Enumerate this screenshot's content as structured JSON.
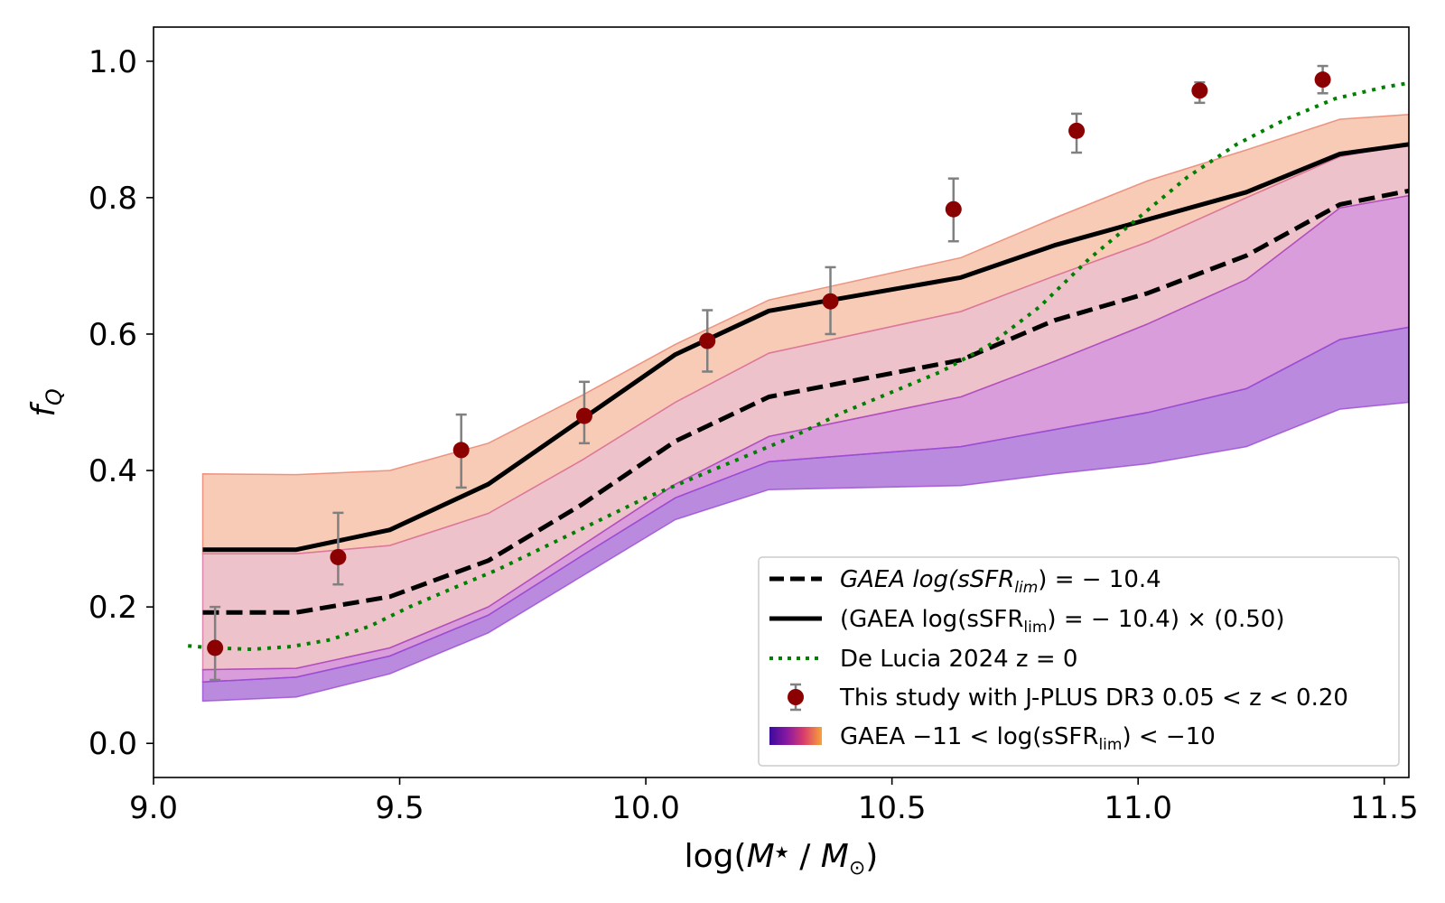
{
  "chart_data": {
    "type": "line",
    "title": "",
    "xlabel_parts": [
      "log(",
      "M",
      "★",
      " / ",
      "M",
      "⊙",
      ")"
    ],
    "ylabel_parts": [
      "f",
      "Q"
    ],
    "xlim": [
      9.0,
      11.55
    ],
    "ylim": [
      -0.05,
      1.05
    ],
    "xticks": [
      9.0,
      9.5,
      10.0,
      10.5,
      11.0,
      11.5
    ],
    "xtick_labels": [
      "9.0",
      "9.5",
      "10.0",
      "10.5",
      "11.0",
      "11.5"
    ],
    "yticks": [
      0.0,
      0.2,
      0.4,
      0.6,
      0.8,
      1.0
    ],
    "ytick_labels": [
      "0.0",
      "0.2",
      "0.4",
      "0.6",
      "0.8",
      "1.0"
    ],
    "colors": {
      "points": "#8b0000",
      "errorbars": "#808080",
      "gaea_dashed": "#000000",
      "gaea_solid": "#000000",
      "delucia": "#008000",
      "band_outer": "#f0a07a",
      "band_mid": "#e39aa8",
      "band_inner_upper": "#c368c6",
      "band_inner_lower": "#8a3cc8"
    },
    "bands": [
      {
        "name": "band-outer",
        "x": [
          9.1,
          9.29,
          9.48,
          9.68,
          9.87,
          10.06,
          10.25,
          10.64,
          10.83,
          11.02,
          11.22,
          11.41,
          11.55
        ],
        "lower": [
          0.278,
          0.278,
          0.29,
          0.337,
          0.415,
          0.5,
          0.572,
          0.633,
          0.685,
          0.735,
          0.8,
          0.86,
          0.88
        ],
        "upper": [
          0.395,
          0.394,
          0.4,
          0.44,
          0.51,
          0.585,
          0.65,
          0.712,
          0.77,
          0.825,
          0.87,
          0.915,
          0.922
        ]
      },
      {
        "name": "band-mid",
        "x": [
          9.1,
          9.29,
          9.48,
          9.68,
          9.87,
          10.06,
          10.25,
          10.64,
          10.83,
          11.02,
          11.22,
          11.41,
          11.55
        ],
        "lower": [
          0.108,
          0.11,
          0.14,
          0.2,
          0.29,
          0.38,
          0.45,
          0.508,
          0.56,
          0.615,
          0.68,
          0.785,
          0.803
        ],
        "upper": [
          0.278,
          0.278,
          0.29,
          0.337,
          0.415,
          0.5,
          0.572,
          0.633,
          0.685,
          0.735,
          0.8,
          0.86,
          0.88
        ]
      },
      {
        "name": "band-inner-upper",
        "x": [
          9.1,
          9.29,
          9.48,
          9.68,
          9.87,
          10.06,
          10.25,
          10.64,
          10.83,
          11.02,
          11.22,
          11.41,
          11.55
        ],
        "lower": [
          0.09,
          0.097,
          0.128,
          0.188,
          0.275,
          0.36,
          0.413,
          0.435,
          0.46,
          0.485,
          0.52,
          0.592,
          0.61
        ],
        "upper": [
          0.108,
          0.11,
          0.14,
          0.2,
          0.29,
          0.38,
          0.45,
          0.508,
          0.56,
          0.615,
          0.68,
          0.785,
          0.803
        ]
      },
      {
        "name": "band-inner-lower",
        "x": [
          9.1,
          9.29,
          9.48,
          9.68,
          9.87,
          10.06,
          10.25,
          10.64,
          10.83,
          11.02,
          11.22,
          11.41,
          11.55
        ],
        "lower": [
          0.062,
          0.068,
          0.102,
          0.162,
          0.245,
          0.328,
          0.372,
          0.378,
          0.395,
          0.41,
          0.435,
          0.49,
          0.5
        ],
        "upper": [
          0.09,
          0.097,
          0.128,
          0.188,
          0.275,
          0.36,
          0.413,
          0.435,
          0.46,
          0.485,
          0.52,
          0.592,
          0.61
        ]
      }
    ],
    "series": [
      {
        "name": "GAEA dashed",
        "x": [
          9.1,
          9.29,
          9.48,
          9.68,
          9.87,
          10.06,
          10.25,
          10.64,
          10.83,
          11.02,
          11.22,
          11.41,
          11.55
        ],
        "y": [
          0.192,
          0.192,
          0.215,
          0.268,
          0.35,
          0.443,
          0.508,
          0.562,
          0.62,
          0.66,
          0.715,
          0.79,
          0.81
        ]
      },
      {
        "name": "GAEA scaled solid",
        "x": [
          9.1,
          9.29,
          9.48,
          9.68,
          9.87,
          10.06,
          10.25,
          10.64,
          10.83,
          11.02,
          11.22,
          11.41,
          11.55
        ],
        "y": [
          0.284,
          0.284,
          0.313,
          0.38,
          0.475,
          0.57,
          0.634,
          0.683,
          0.73,
          0.768,
          0.808,
          0.864,
          0.878
        ]
      },
      {
        "name": "De Lucia 2024",
        "x": [
          9.07,
          9.12,
          9.2,
          9.28,
          9.36,
          9.44,
          9.52,
          9.6,
          9.7,
          9.8,
          9.9,
          10.0,
          10.1,
          10.2,
          10.3,
          10.4,
          10.5,
          10.6,
          10.7,
          10.8,
          10.9,
          11.0,
          11.1,
          11.2,
          11.3,
          11.4,
          11.5,
          11.55
        ],
        "y": [
          0.143,
          0.14,
          0.138,
          0.142,
          0.152,
          0.172,
          0.2,
          0.225,
          0.255,
          0.29,
          0.325,
          0.36,
          0.39,
          0.42,
          0.45,
          0.485,
          0.515,
          0.545,
          0.585,
          0.64,
          0.71,
          0.77,
          0.83,
          0.878,
          0.915,
          0.945,
          0.962,
          0.968
        ]
      }
    ],
    "points": {
      "x": [
        9.125,
        9.375,
        9.625,
        9.875,
        10.125,
        10.375,
        10.625,
        10.875,
        11.125,
        11.375
      ],
      "y": [
        0.14,
        0.273,
        0.43,
        0.48,
        0.59,
        0.648,
        0.783,
        0.898,
        0.957,
        0.973
      ],
      "err_low": [
        0.047,
        0.04,
        0.055,
        0.04,
        0.045,
        0.048,
        0.047,
        0.032,
        0.018,
        0.02
      ],
      "err_high": [
        0.06,
        0.065,
        0.052,
        0.05,
        0.045,
        0.05,
        0.045,
        0.025,
        0.012,
        0.02
      ]
    },
    "legend": {
      "location": "lower-right",
      "entries": [
        {
          "style": "dashed",
          "parts": [
            "GAEA log(sSFR",
            "lim",
            ") = − 10.4"
          ]
        },
        {
          "style": "solid",
          "parts": [
            "(GAEA log(sSFR",
            "lim",
            ") = − 10.4) × (0.50)"
          ]
        },
        {
          "style": "dotted",
          "parts": [
            "De Lucia 2024 z = 0"
          ]
        },
        {
          "style": "errorbar",
          "parts": [
            "This study with J-PLUS DR3 0.05 < z < 0.20"
          ]
        },
        {
          "style": "gradient",
          "parts": [
            "GAEA −11 < log(sSFR",
            "lim",
            ") < −10"
          ]
        }
      ]
    }
  }
}
